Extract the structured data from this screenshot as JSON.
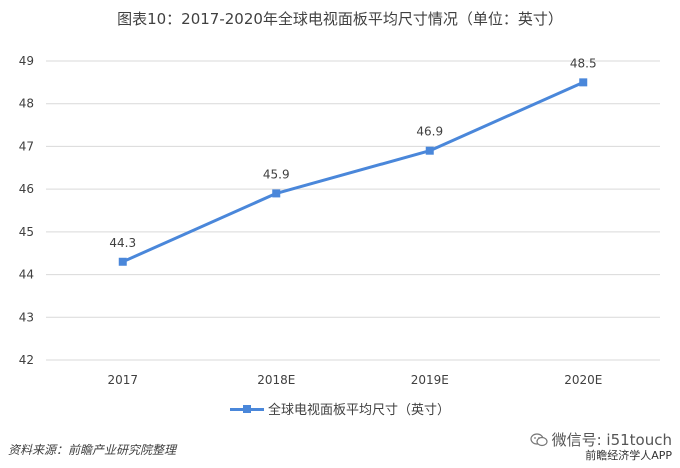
{
  "header": {
    "title": "图表10：2017-2020年全球电视面板平均尺寸情况（单位：英寸）"
  },
  "footer": {
    "source": "资料来源：前瞻产业研究院整理",
    "credit": "微信号: i51touch",
    "credit_sub": "前瞻经济学人APP",
    "credit_icon": "wechat-icon"
  },
  "colors": {
    "series": "#4a87da",
    "grid": "#d9d9d9",
    "text": "#404040"
  },
  "chart_data": {
    "type": "line",
    "title": "",
    "xlabel": "",
    "ylabel": "",
    "categories": [
      "2017",
      "2018E",
      "2019E",
      "2020E"
    ],
    "series": [
      {
        "name": "全球电视面板平均尺寸（英寸）",
        "values": [
          44.3,
          45.9,
          46.9,
          48.5
        ]
      }
    ],
    "data_labels": [
      "44.3",
      "45.9",
      "46.9",
      "48.5"
    ],
    "ylim": [
      42,
      49
    ],
    "yticks": [
      "42",
      "43",
      "44",
      "45",
      "46",
      "47",
      "48",
      "49"
    ],
    "grid": "horizontal",
    "legend": "bottom",
    "marker": "square"
  }
}
